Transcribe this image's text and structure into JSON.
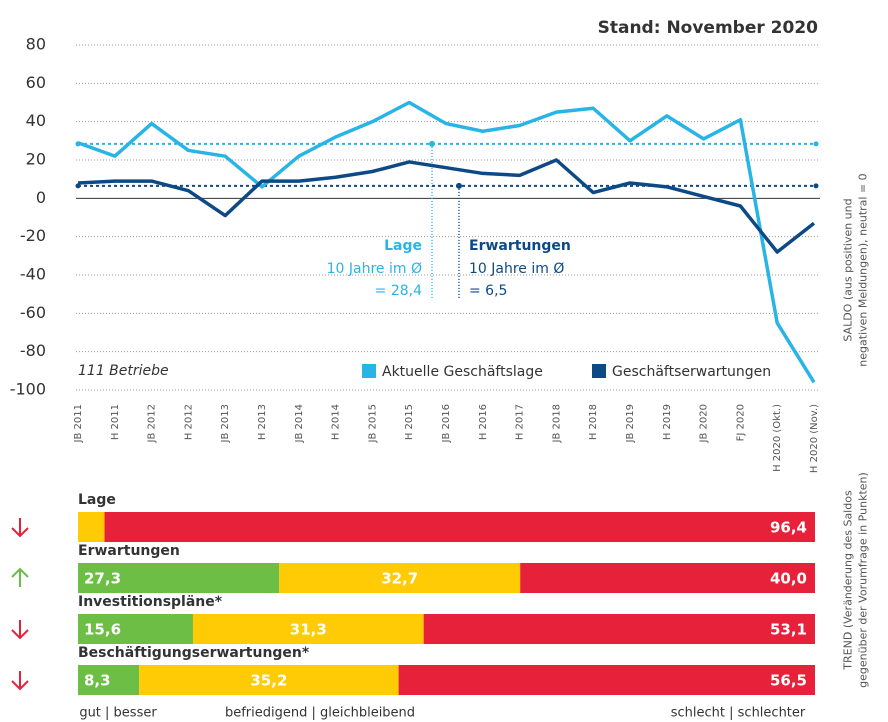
{
  "chart_data": [
    {
      "type": "line",
      "title": "Stand: November 2020",
      "note": "111 Betriebe",
      "y_axis_label": [
        "SALDO (aus positiven und",
        "negativen Meldungen), neutral = 0"
      ],
      "categories": [
        "JB 2011",
        "H 2011",
        "JB 2012",
        "H 2012",
        "JB 2013",
        "H 2013",
        "JB 2014",
        "H 2014",
        "JB 2015",
        "H 2015",
        "JB 2016",
        "H 2016",
        "H 2017",
        "JB 2018",
        "H 2018",
        "JB 2019",
        "H 2019",
        "JB 2020",
        "FJ 2020",
        "H 2020 (Okt.)",
        "H 2020 (Nov.)"
      ],
      "series": [
        {
          "name": "Aktuelle Geschäftslage",
          "color": "#29b4e6",
          "values": [
            29,
            22,
            39,
            25,
            22,
            6,
            22,
            32,
            40,
            50,
            39,
            35,
            38,
            45,
            47,
            30,
            43,
            31,
            41,
            -65,
            -96
          ]
        },
        {
          "name": "Geschäftserwartungen",
          "color": "#0d4a85",
          "values": [
            8,
            9,
            9,
            4,
            -9,
            9,
            9,
            11,
            14,
            19,
            16,
            13,
            12,
            20,
            3,
            8,
            6,
            1,
            -4,
            -28,
            -13
          ]
        }
      ],
      "averages": [
        {
          "series": 0,
          "value": 28.4,
          "label": "Lage",
          "text": "10 Jahre im Ø",
          "value_label": "= 28,4"
        },
        {
          "series": 1,
          "value": 6.5,
          "label": "Erwartungen",
          "text": "10 Jahre im Ø",
          "value_label": "= 6,5"
        }
      ],
      "ylim": [
        -100,
        80
      ],
      "yticks": [
        -100,
        -80,
        -60,
        -40,
        -20,
        0,
        20,
        40,
        60,
        80
      ],
      "grid": true,
      "legend": "bottom-right"
    },
    {
      "type": "stacked-bar",
      "orientation": "horizontal",
      "y_axis_label": [
        "TREND (Veränderung des Saldos",
        "gegenüber der Vorumfrage in Punkten)"
      ],
      "categories": [
        "Lage",
        "Erwartungen",
        "Investitionspläne*",
        "Beschäftigungserwartungen*"
      ],
      "trend": [
        "down",
        "up",
        "down",
        "down"
      ],
      "xlim": [
        0,
        100
      ],
      "series": [
        {
          "name": "gut | besser",
          "color": "#6cbf44",
          "values": [
            0,
            27.3,
            15.6,
            8.3
          ],
          "value_labels": [
            null,
            "27,3",
            "15,6",
            "8,3"
          ]
        },
        {
          "name": "befriedigend | gleichbleibend",
          "color": "#ffcb05",
          "values": [
            3.6,
            32.7,
            31.3,
            35.2
          ],
          "value_labels": [
            "3,6",
            "32,7",
            "31,3",
            "35,2"
          ]
        },
        {
          "name": "schlecht | schlechter",
          "color": "#e8213b",
          "values": [
            96.4,
            40.0,
            53.1,
            56.5
          ],
          "value_labels": [
            "96,4",
            "40,0",
            "53,1",
            "56,5"
          ]
        }
      ]
    }
  ]
}
